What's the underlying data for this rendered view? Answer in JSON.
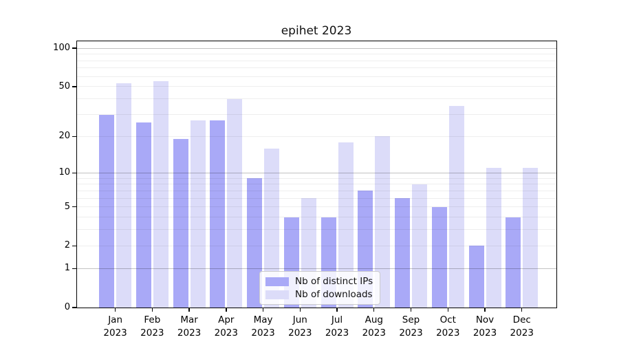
{
  "page": {
    "background": "#ffffff"
  },
  "chart_data": {
    "type": "bar",
    "title": "epihet 2023",
    "months": [
      "Jan",
      "Feb",
      "Mar",
      "Apr",
      "May",
      "Jun",
      "Jul",
      "Aug",
      "Sep",
      "Oct",
      "Nov",
      "Dec"
    ],
    "year": "2023",
    "series": [
      {
        "name": "Nb of distinct IPs",
        "key": "distinct-ips",
        "color": "#a9a9f7",
        "values": [
          30,
          26,
          19,
          27,
          9,
          4,
          4,
          7,
          6,
          5,
          2,
          4
        ]
      },
      {
        "name": "Nb of downloads",
        "key": "downloads",
        "color": "#dcdcf9",
        "values": [
          53,
          55,
          27,
          40,
          16,
          6,
          18,
          20,
          8,
          35,
          11,
          11
        ]
      }
    ],
    "xlabel": "",
    "ylabel": "",
    "y_axis": {
      "scale": "log1p",
      "ticks": [
        0,
        1,
        2,
        5,
        10,
        20,
        50,
        100
      ],
      "major_gridlines": [
        1,
        10,
        100
      ],
      "minor_gridlines": [
        2,
        3,
        4,
        5,
        6,
        7,
        8,
        9,
        20,
        30,
        40,
        50,
        60,
        70,
        80,
        90
      ],
      "range_top": 112
    },
    "grid": "horizontal",
    "legend_position": "lower center",
    "axis_color": "#000000"
  }
}
